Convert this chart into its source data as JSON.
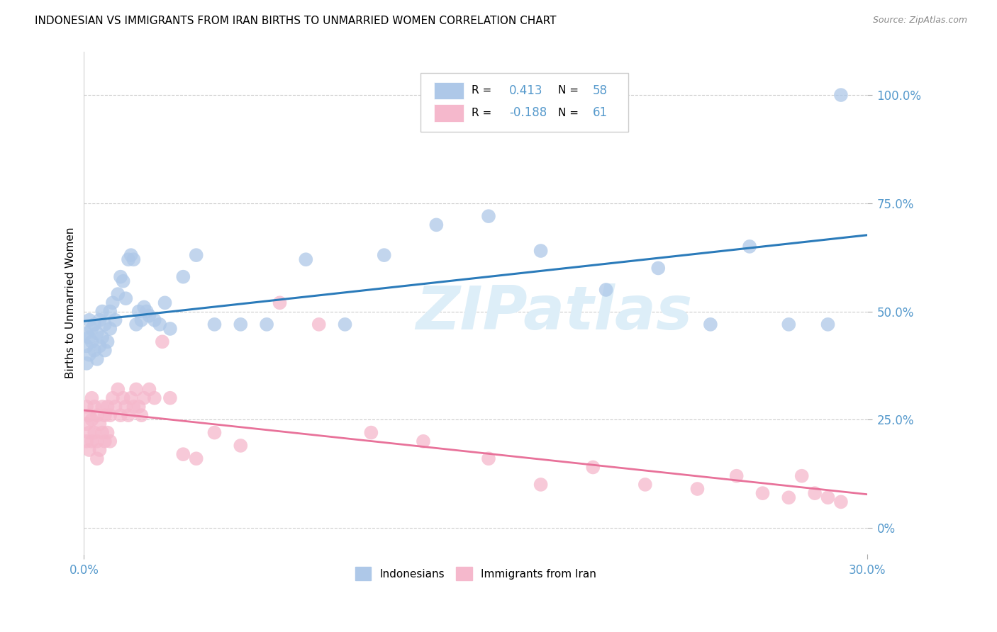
{
  "title": "INDONESIAN VS IMMIGRANTS FROM IRAN BIRTHS TO UNMARRIED WOMEN CORRELATION CHART",
  "source": "Source: ZipAtlas.com",
  "ylabel": "Births to Unmarried Women",
  "ytick_vals": [
    0.0,
    0.25,
    0.5,
    0.75,
    1.0
  ],
  "ytick_labels": [
    "0%",
    "25.0%",
    "50.0%",
    "75.0%",
    "100.0%"
  ],
  "xmin": 0.0,
  "xmax": 0.3,
  "ymin": -0.06,
  "ymax": 1.1,
  "r_indonesian": 0.413,
  "n_indonesian": 58,
  "r_iran": -0.188,
  "n_iran": 61,
  "blue_scatter_color": "#aec8e8",
  "pink_scatter_color": "#f5b8cc",
  "blue_line_color": "#2b7bba",
  "pink_line_color": "#e8729a",
  "watermark": "ZIPatlas",
  "watermark_color": "#ddeef8",
  "legend_box_color": "#eeeeee",
  "tick_label_color": "#5599cc",
  "indo_x": [
    0.001,
    0.001,
    0.001,
    0.002,
    0.002,
    0.002,
    0.003,
    0.003,
    0.004,
    0.004,
    0.005,
    0.005,
    0.006,
    0.006,
    0.007,
    0.007,
    0.008,
    0.008,
    0.009,
    0.01,
    0.01,
    0.011,
    0.012,
    0.013,
    0.014,
    0.015,
    0.016,
    0.017,
    0.018,
    0.019,
    0.02,
    0.021,
    0.022,
    0.023,
    0.024,
    0.025,
    0.027,
    0.029,
    0.031,
    0.033,
    0.038,
    0.043,
    0.05,
    0.06,
    0.07,
    0.085,
    0.1,
    0.115,
    0.135,
    0.155,
    0.175,
    0.2,
    0.22,
    0.24,
    0.255,
    0.27,
    0.285,
    0.29
  ],
  "indo_y": [
    0.38,
    0.42,
    0.45,
    0.4,
    0.44,
    0.48,
    0.43,
    0.46,
    0.41,
    0.47,
    0.39,
    0.45,
    0.42,
    0.48,
    0.44,
    0.5,
    0.41,
    0.47,
    0.43,
    0.46,
    0.5,
    0.52,
    0.48,
    0.54,
    0.58,
    0.57,
    0.53,
    0.62,
    0.63,
    0.62,
    0.47,
    0.5,
    0.48,
    0.51,
    0.5,
    0.49,
    0.48,
    0.47,
    0.52,
    0.46,
    0.58,
    0.63,
    0.47,
    0.47,
    0.47,
    0.62,
    0.47,
    0.63,
    0.7,
    0.72,
    0.64,
    0.55,
    0.6,
    0.47,
    0.65,
    0.47,
    0.47,
    1.0
  ],
  "iran_x": [
    0.001,
    0.001,
    0.001,
    0.002,
    0.002,
    0.002,
    0.003,
    0.003,
    0.003,
    0.004,
    0.004,
    0.005,
    0.005,
    0.005,
    0.006,
    0.006,
    0.007,
    0.007,
    0.008,
    0.008,
    0.009,
    0.009,
    0.01,
    0.01,
    0.011,
    0.012,
    0.013,
    0.014,
    0.015,
    0.016,
    0.017,
    0.018,
    0.019,
    0.02,
    0.021,
    0.022,
    0.023,
    0.025,
    0.027,
    0.03,
    0.033,
    0.038,
    0.043,
    0.05,
    0.06,
    0.075,
    0.09,
    0.11,
    0.13,
    0.155,
    0.175,
    0.195,
    0.215,
    0.235,
    0.25,
    0.26,
    0.27,
    0.275,
    0.28,
    0.285,
    0.29
  ],
  "iran_y": [
    0.28,
    0.24,
    0.2,
    0.26,
    0.22,
    0.18,
    0.3,
    0.25,
    0.2,
    0.28,
    0.22,
    0.26,
    0.2,
    0.16,
    0.24,
    0.18,
    0.28,
    0.22,
    0.26,
    0.2,
    0.28,
    0.22,
    0.26,
    0.2,
    0.3,
    0.28,
    0.32,
    0.26,
    0.3,
    0.28,
    0.26,
    0.3,
    0.28,
    0.32,
    0.28,
    0.26,
    0.3,
    0.32,
    0.3,
    0.43,
    0.3,
    0.17,
    0.16,
    0.22,
    0.19,
    0.52,
    0.47,
    0.22,
    0.2,
    0.16,
    0.1,
    0.14,
    0.1,
    0.09,
    0.12,
    0.08,
    0.07,
    0.12,
    0.08,
    0.07,
    0.06
  ]
}
